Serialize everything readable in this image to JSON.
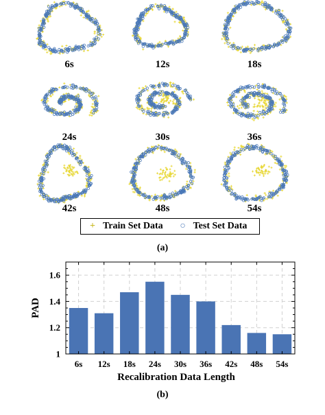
{
  "panel_a": {
    "caption": "(a)",
    "legend": {
      "train_marker": "+",
      "train_label": "Train Set Data",
      "test_marker": "○",
      "test_label": "Test Set Data"
    },
    "cells": [
      {
        "label": "6s"
      },
      {
        "label": "12s"
      },
      {
        "label": "18s"
      },
      {
        "label": "24s"
      },
      {
        "label": "30s"
      },
      {
        "label": "36s"
      },
      {
        "label": "42s"
      },
      {
        "label": "48s"
      },
      {
        "label": "54s"
      }
    ],
    "colors": {
      "train": "#e8d83a",
      "test": "#4a78b8"
    }
  },
  "panel_b": {
    "caption": "(b)"
  },
  "chart_data": {
    "type": "bar",
    "categories": [
      "6s",
      "12s",
      "18s",
      "24s",
      "30s",
      "36s",
      "42s",
      "48s",
      "54s"
    ],
    "values": [
      1.35,
      1.31,
      1.47,
      1.55,
      1.45,
      1.4,
      1.22,
      1.16,
      1.15
    ],
    "xlabel": "Recalibration Data Length",
    "ylabel": "PAD",
    "ylim": [
      1,
      1.7
    ],
    "yticks": [
      1,
      1.2,
      1.4,
      1.6
    ],
    "grid": true,
    "bar_color": "#4a74b4"
  }
}
